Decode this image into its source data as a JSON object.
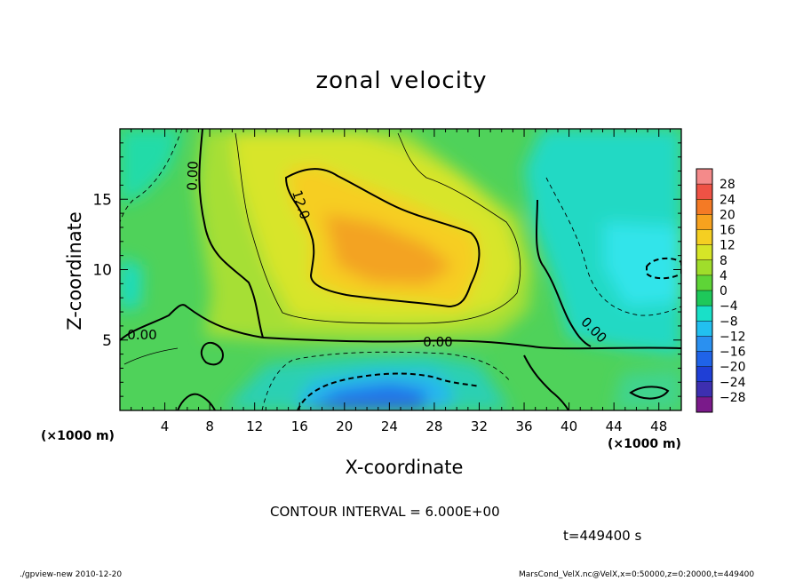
{
  "chart_data": {
    "type": "heatmap",
    "title": "zonal velocity",
    "xlabel": "X-coordinate",
    "ylabel": "Z-coordinate",
    "x_unit_left": "(×1000 m)",
    "x_unit_right": "(×1000 m)",
    "xlim": [
      0,
      50
    ],
    "ylim": [
      0,
      20
    ],
    "x_ticks": [
      4,
      8,
      12,
      16,
      20,
      24,
      28,
      32,
      36,
      40,
      44,
      48
    ],
    "y_ticks": [
      5,
      10,
      15
    ],
    "colorbar": {
      "levels": [
        28,
        24,
        20,
        16,
        12,
        8,
        4,
        0,
        -4,
        -8,
        -12,
        -16,
        -20,
        -24,
        -28
      ],
      "colors": [
        "#7a1a8a",
        "#3d2fb0",
        "#1f3fd6",
        "#1f63e8",
        "#2a90f0",
        "#22c0f0",
        "#19e0c8",
        "#1ec85a",
        "#5ed437",
        "#a0dd2b",
        "#d6e527",
        "#f5cf22",
        "#f7a21e",
        "#f47a25",
        "#ef5245",
        "#f48a8a"
      ]
    },
    "contour_labels": [
      "0.00",
      "0.00",
      "0.00",
      "0.00",
      "12.0"
    ],
    "contour_interval": "CONTOUR INTERVAL = 6.000E+00",
    "time": "t=449400 s",
    "footer_left": "./gpview-new  2010-12-20",
    "footer_right": "MarsCond_VelX.nc@VelX,x=0:50000,z=0:20000,t=449400"
  }
}
